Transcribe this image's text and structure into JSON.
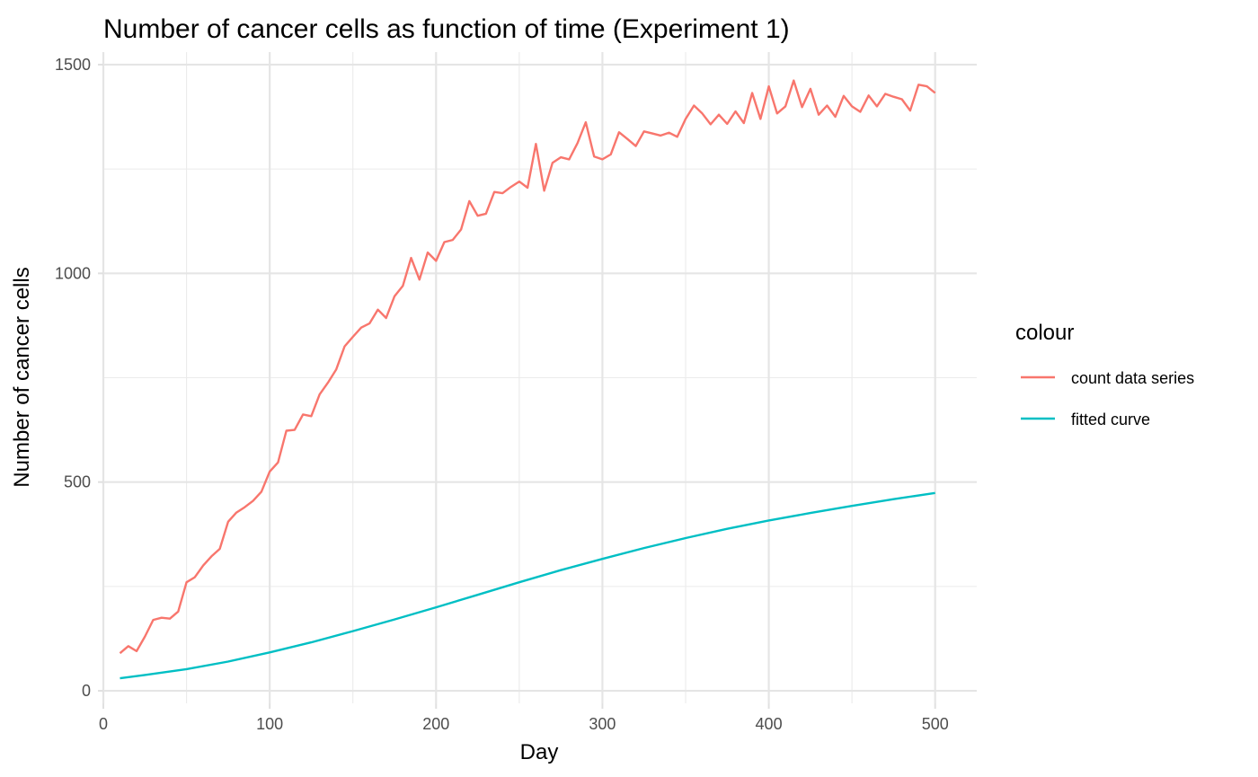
{
  "chart_data": {
    "type": "line",
    "title": "Number of cancer cells as function of time (Experiment 1)",
    "xlabel": "Day",
    "ylabel": "Number of cancer cells",
    "xlim": [
      0,
      525
    ],
    "ylim": [
      -30,
      1530
    ],
    "x_ticks": [
      0,
      100,
      200,
      300,
      400,
      500
    ],
    "y_ticks": [
      0,
      500,
      1000,
      1500
    ],
    "x_tick_labels": [
      "0",
      "100",
      "200",
      "300",
      "400",
      "500"
    ],
    "y_tick_labels": [
      "0",
      "500",
      "1000",
      "1500"
    ],
    "grid": true,
    "legend": {
      "title": "colour",
      "placement": "right",
      "entries": [
        "count data series",
        "fitted curve"
      ]
    },
    "series": [
      {
        "name": "count data series",
        "color": "#F8766D",
        "x": [
          10,
          15,
          20,
          25,
          30,
          35,
          40,
          45,
          50,
          55,
          60,
          65,
          70,
          75,
          80,
          85,
          90,
          95,
          100,
          105,
          110,
          115,
          120,
          125,
          130,
          135,
          140,
          145,
          150,
          155,
          160,
          165,
          170,
          175,
          180,
          185,
          190,
          195,
          200,
          205,
          210,
          215,
          220,
          225,
          230,
          235,
          240,
          245,
          250,
          255,
          260,
          265,
          270,
          275,
          280,
          285,
          290,
          295,
          300,
          305,
          310,
          315,
          320,
          325,
          330,
          335,
          340,
          345,
          350,
          355,
          360,
          365,
          370,
          375,
          380,
          385,
          390,
          395,
          400,
          405,
          410,
          415,
          420,
          425,
          430,
          435,
          440,
          445,
          450,
          455,
          460,
          465,
          470,
          475,
          480,
          485,
          490,
          495,
          500
        ],
        "y": [
          90,
          107,
          95,
          130,
          170,
          175,
          173,
          190,
          260,
          272,
          300,
          322,
          340,
          405,
          427,
          440,
          455,
          477,
          525,
          547,
          623,
          625,
          662,
          658,
          710,
          738,
          770,
          825,
          848,
          870,
          880,
          913,
          893,
          945,
          970,
          1037,
          985,
          1050,
          1030,
          1075,
          1080,
          1105,
          1173,
          1138,
          1143,
          1195,
          1192,
          1207,
          1220,
          1205,
          1310,
          1198,
          1265,
          1278,
          1273,
          1312,
          1362,
          1280,
          1273,
          1285,
          1338,
          1322,
          1305,
          1340,
          1335,
          1330,
          1337,
          1327,
          1370,
          1402,
          1383,
          1357,
          1380,
          1358,
          1388,
          1360,
          1432,
          1370,
          1448,
          1383,
          1400,
          1462,
          1398,
          1442,
          1380,
          1402,
          1375,
          1425,
          1400,
          1387,
          1426,
          1400,
          1430,
          1423,
          1417,
          1390,
          1452,
          1448,
          1432
        ]
      },
      {
        "name": "fitted curve",
        "color": "#00BFC4",
        "x": [
          10,
          25,
          50,
          75,
          100,
          125,
          150,
          175,
          200,
          225,
          250,
          275,
          300,
          325,
          350,
          375,
          400,
          425,
          450,
          475,
          500
        ],
        "y": [
          30,
          38,
          52,
          70,
          92,
          116,
          143,
          171,
          200,
          230,
          260,
          289,
          316,
          342,
          366,
          388,
          408,
          426,
          443,
          459,
          474
        ]
      }
    ]
  }
}
